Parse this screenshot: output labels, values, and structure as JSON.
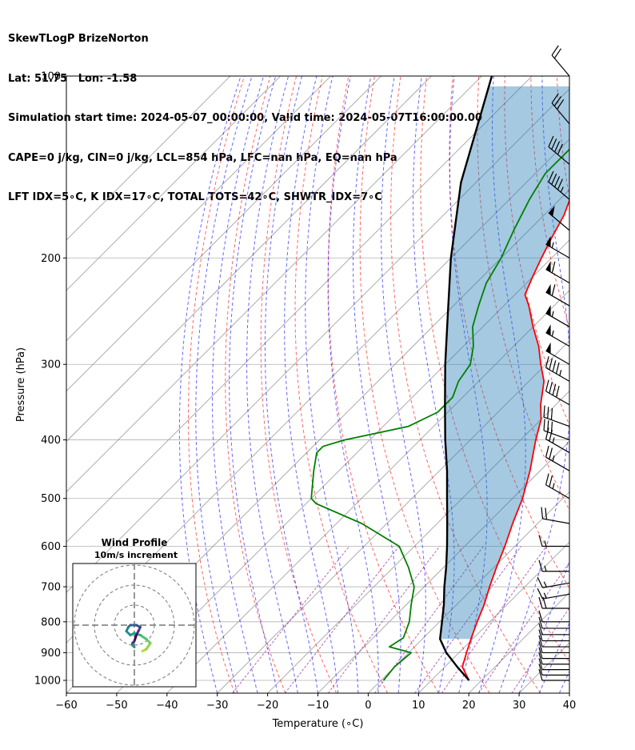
{
  "header": {
    "line1": "SkewTLogP BrizeNorton",
    "line2": "Lat: 51.75   Lon: -1.58",
    "line3": "Simulation start time: 2024-05-07_00:00:00, Valid time: 2024-05-07T16:00:00.00",
    "line4": "CAPE=0 j/kg, CIN=0 j/kg, LCL=854 hPa, LFC=nan hPa, EQ=nan hPa",
    "line5": "LFT IDX=5∘C, K IDX=17∘C, TOTAL TOTS=42∘C, SHWTR_IDX=7∘C"
  },
  "chart_data": {
    "type": "skewt",
    "xlabel": "Temperature (∘C)",
    "ylabel": "Pressure (hPa)",
    "xlim": [
      -60,
      40
    ],
    "ylim": [
      1050,
      100
    ],
    "x_ticks": [
      "−60",
      "−50",
      "−40",
      "−30",
      "−20",
      "−10",
      "0",
      "10",
      "20",
      "30",
      "40"
    ],
    "x_tick_values": [
      -60,
      -50,
      -40,
      -30,
      -20,
      -10,
      0,
      10,
      20,
      30,
      40
    ],
    "y_ticks": [
      "100",
      "200",
      "300",
      "400",
      "500",
      "600",
      "700",
      "800",
      "900",
      "1000"
    ],
    "y_tick_values": [
      100,
      200,
      300,
      400,
      500,
      600,
      700,
      800,
      900,
      1000
    ],
    "grid": true,
    "temperature_profile": {
      "color": "#ff0000",
      "p": [
        1000,
        950,
        900,
        850,
        800,
        750,
        700,
        650,
        600,
        550,
        500,
        450,
        400,
        370,
        350,
        320,
        300,
        280,
        260,
        240,
        230,
        215,
        200,
        185,
        170,
        160,
        150,
        140,
        130,
        120,
        110,
        100
      ],
      "t": [
        17.5,
        13.5,
        11.5,
        9.5,
        7.5,
        5.5,
        3,
        0.5,
        -2,
        -5,
        -8,
        -12,
        -17,
        -20,
        -23,
        -27,
        -31,
        -35,
        -40,
        -45,
        -48,
        -50,
        -52,
        -54,
        -56,
        -58,
        -58,
        -59,
        -60,
        -60,
        -61,
        -61
      ]
    },
    "dewpoint_profile": {
      "color": "#008000",
      "p": [
        1000,
        950,
        900,
        880,
        850,
        800,
        750,
        700,
        650,
        600,
        550,
        510,
        500,
        450,
        420,
        410,
        400,
        380,
        360,
        340,
        320,
        300,
        280,
        260,
        240,
        220,
        200,
        180,
        160,
        145,
        130,
        115,
        100
      ],
      "t": [
        0.5,
        0,
        0.5,
        -5,
        -4,
        -6,
        -9,
        -12,
        -17,
        -23,
        -35,
        -48,
        -50,
        -55,
        -58,
        -58,
        -55,
        -45,
        -42,
        -42,
        -44,
        -45,
        -48,
        -52,
        -55,
        -58,
        -60,
        -63,
        -66,
        -68,
        -68,
        -70,
        -73
      ]
    },
    "parcel_profile": {
      "color": "#000000",
      "p": [
        1000,
        950,
        900,
        854,
        800,
        750,
        700,
        650,
        600,
        550,
        500,
        450,
        400,
        350,
        300,
        250,
        200,
        150,
        100
      ],
      "t": [
        17.5,
        12.5,
        7.5,
        3.5,
        0.5,
        -2.5,
        -6,
        -9.5,
        -13.5,
        -18,
        -23,
        -28.5,
        -35,
        -42,
        -50,
        -59,
        -70,
        -83,
        -98
      ]
    },
    "cin_cape_shading": {
      "color": "#1f77b4",
      "opacity": 0.4,
      "between": [
        "parcel_profile",
        "temperature_profile"
      ],
      "p_range": [
        854,
        100
      ]
    },
    "reference_lines": {
      "isotherm_color": "#999999",
      "dry_adiabat_color": "#ff0000",
      "moist_adiabat_color": "#0000ff",
      "mixing_ratio_color": "#800080"
    },
    "wind_barbs": {
      "p": [
        1000,
        980,
        960,
        940,
        920,
        900,
        880,
        860,
        840,
        820,
        800,
        760,
        720,
        690,
        660,
        600,
        550,
        500,
        450,
        420,
        400,
        380,
        350,
        320,
        300,
        280,
        260,
        240,
        220,
        200,
        180,
        160,
        140,
        120,
        100
      ],
      "speed_kt": [
        10,
        10,
        10,
        10,
        10,
        10,
        10,
        10,
        10,
        10,
        10,
        20,
        15,
        15,
        15,
        15,
        20,
        25,
        25,
        25,
        30,
        30,
        40,
        45,
        50,
        55,
        55,
        60,
        60,
        55,
        50,
        45,
        40,
        30,
        20
      ],
      "dir_deg": [
        270,
        270,
        270,
        270,
        270,
        270,
        270,
        270,
        270,
        270,
        270,
        270,
        260,
        260,
        270,
        270,
        280,
        300,
        300,
        300,
        290,
        290,
        300,
        300,
        300,
        300,
        300,
        300,
        300,
        300,
        310,
        310,
        310,
        320,
        320
      ]
    },
    "hodograph": {
      "title": "Wind Profile",
      "subtitle": "10m/s increment",
      "ring_increment_ms": 10,
      "rings": 3,
      "u_ms": [
        4,
        6,
        8,
        6,
        3,
        0,
        -2,
        -4,
        -3,
        -2,
        1,
        3,
        2,
        1,
        0,
        -1,
        -1,
        0
      ],
      "v_ms": [
        -13,
        -12,
        -9,
        -7,
        -5,
        -4,
        -5,
        -3,
        -1,
        0,
        0,
        -1,
        -3,
        -5,
        -8,
        -9,
        -10,
        -11
      ]
    }
  }
}
